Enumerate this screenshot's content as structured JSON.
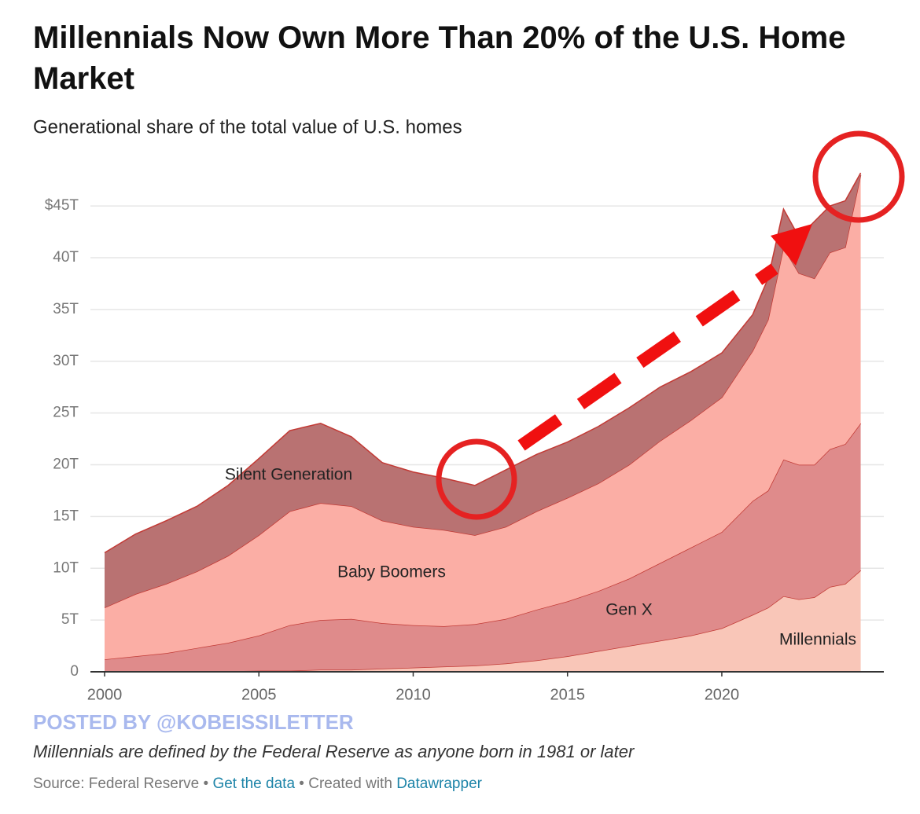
{
  "chart_data": {
    "type": "stacked-area",
    "title": "Millennials Now Own More Than 20% of the U.S. Home Market",
    "subtitle": "Generational share of the total value of U.S. homes",
    "x": [
      2000,
      2001,
      2002,
      2003,
      2004,
      2005,
      2006,
      2007,
      2008,
      2009,
      2010,
      2011,
      2012,
      2013,
      2014,
      2015,
      2016,
      2017,
      2018,
      2019,
      2020,
      2021,
      2021.5,
      2022,
      2022.5,
      2023,
      2023.5,
      2024,
      2024.5
    ],
    "series": [
      {
        "name": "Millennials",
        "color": "#f9c6b8",
        "values": [
          0,
          0,
          0,
          0.05,
          0.05,
          0.1,
          0.1,
          0.2,
          0.2,
          0.3,
          0.4,
          0.5,
          0.6,
          0.8,
          1.1,
          1.5,
          2.0,
          2.5,
          3.0,
          3.5,
          4.2,
          5.5,
          6.2,
          7.3,
          7.0,
          7.2,
          8.2,
          8.5,
          9.8
        ]
      },
      {
        "name": "Gen X",
        "color": "#df8b8b",
        "values": [
          1.2,
          1.5,
          1.8,
          2.25,
          2.75,
          3.4,
          4.4,
          4.8,
          4.9,
          4.4,
          4.1,
          3.9,
          4.0,
          4.3,
          4.9,
          5.3,
          5.8,
          6.5,
          7.5,
          8.5,
          9.3,
          11.0,
          11.3,
          13.2,
          13.0,
          12.8,
          13.3,
          13.5,
          14.2
        ]
      },
      {
        "name": "Baby Boomers",
        "color": "#fbaea5",
        "values": [
          5.0,
          6.0,
          6.7,
          7.4,
          8.4,
          9.7,
          11.0,
          11.3,
          10.9,
          9.9,
          9.5,
          9.3,
          8.6,
          8.9,
          9.5,
          10.0,
          10.4,
          11.0,
          11.8,
          12.3,
          13.0,
          14.5,
          16.5,
          20.5,
          18.5,
          18.0,
          19.0,
          19.0,
          24.0
        ]
      },
      {
        "name": "Silent Generation",
        "color": "#b97272",
        "values": [
          5.3,
          5.8,
          6.1,
          6.3,
          6.8,
          7.4,
          7.8,
          7.7,
          6.7,
          5.6,
          5.3,
          5.0,
          4.8,
          5.5,
          5.5,
          5.4,
          5.5,
          5.5,
          5.2,
          4.7,
          4.3,
          3.5,
          4.0,
          3.7,
          3.5,
          5.5,
          4.5,
          4.5,
          0.2
        ]
      }
    ],
    "xlim": [
      2000,
      2025.25
    ],
    "xticks": [
      2000,
      2005,
      2010,
      2015,
      2020
    ],
    "ylim": [
      0,
      48.5
    ],
    "yticks": [
      0,
      {
        "value": 5,
        "label": "5T"
      },
      {
        "value": 10,
        "label": "10T"
      },
      {
        "value": 15,
        "label": "15T"
      },
      {
        "value": 20,
        "label": "20T"
      },
      {
        "value": 25,
        "label": "25T"
      },
      {
        "value": 30,
        "label": "30T"
      },
      {
        "value": 35,
        "label": "35T"
      },
      {
        "value": 40,
        "label": "40T"
      },
      {
        "value": 45,
        "label": "$45T"
      }
    ],
    "grid": true,
    "watermark": "POSTED BY @KOBEISSILETTER",
    "note": "Millennials are defined by the Federal Reserve as anyone born in 1981 or later",
    "footer": {
      "source": "Source: Federal Reserve",
      "separator": "•",
      "link1": "Get the data",
      "created": "Created with",
      "link2": "Datawrapper"
    }
  }
}
